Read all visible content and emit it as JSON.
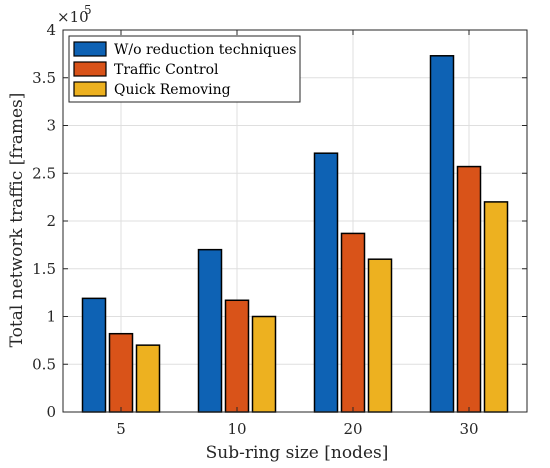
{
  "chart_data": {
    "type": "bar",
    "xlabel": "Sub-ring size [nodes]",
    "ylabel": "Total network traffic [frames]",
    "categories": [
      "5",
      "10",
      "20",
      "30"
    ],
    "y_multiplier_base": "×10",
    "y_multiplier_exp": "5",
    "ylim": [
      0,
      4
    ],
    "yticks": [
      0,
      0.5,
      1,
      1.5,
      2,
      2.5,
      3,
      3.5,
      4
    ],
    "ytick_labels": [
      "0",
      "0.5",
      "1",
      "1.5",
      "2",
      "2.5",
      "3",
      "3.5",
      "4"
    ],
    "grid": true,
    "legend_position": "top-left",
    "series": [
      {
        "name": "W/o reduction techniques",
        "color": "#0E62B4",
        "values": [
          1.19,
          1.7,
          2.71,
          3.73
        ]
      },
      {
        "name": "Traffic Control",
        "color": "#D95319",
        "values": [
          0.82,
          1.17,
          1.87,
          2.57
        ]
      },
      {
        "name": "Quick Removing",
        "color": "#EDB120",
        "values": [
          0.7,
          1.0,
          1.6,
          2.2
        ]
      }
    ]
  }
}
